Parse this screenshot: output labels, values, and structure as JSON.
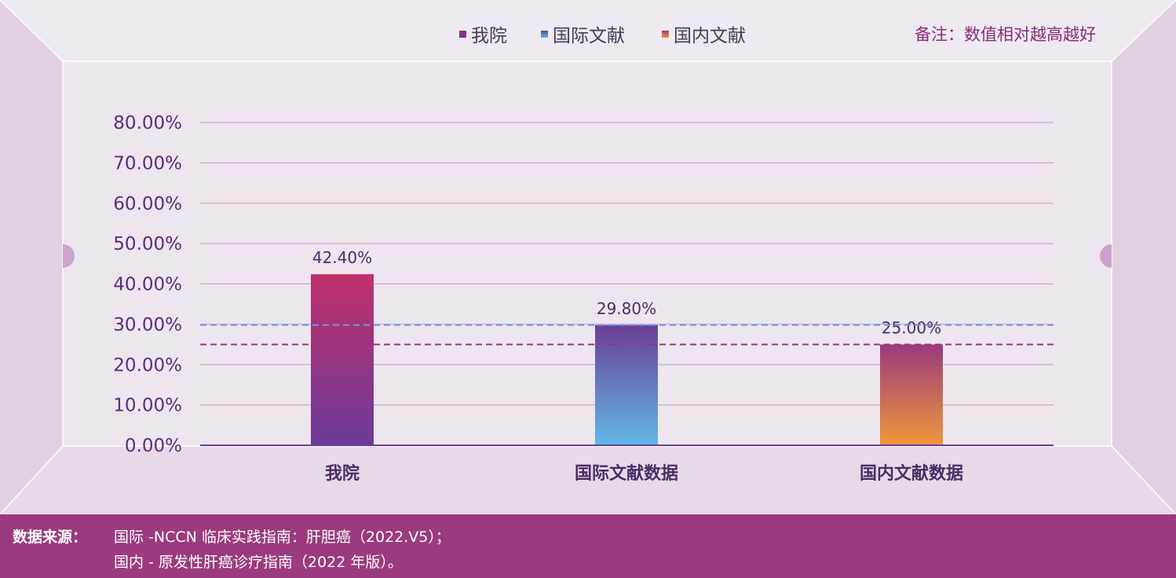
{
  "legend": [
    {
      "label": "我院",
      "color": "#9b2e78"
    },
    {
      "label": "国际文献",
      "color": "#5a7ec8"
    },
    {
      "label": "国内文献",
      "color": "#d9643a"
    }
  ],
  "note": "备注：数值相对越高越好",
  "footer": {
    "label": "数据来源：",
    "line1": "国际 -NCCN 临床实践指南：肝胆癌（2022.V5）；",
    "line2": "国内 - 原发性肝癌诊疗指南（2022 年版）。"
  },
  "chart_data": {
    "type": "bar",
    "categories": [
      "我院",
      "国际文献数据",
      "国内文献数据"
    ],
    "values": [
      42.4,
      29.8,
      25.0
    ],
    "data_labels": [
      "42.40%",
      "29.80%",
      "25.00%"
    ],
    "bar_colors": [
      [
        "#c0306a",
        "#6a3a9a"
      ],
      [
        "#6a3f96",
        "#62b8e6"
      ],
      [
        "#9b3a7e",
        "#f0973a"
      ]
    ],
    "ylim": [
      0,
      80
    ],
    "yticks": [
      "0.00%",
      "10.00%",
      "20.00%",
      "30.00%",
      "40.00%",
      "50.00%",
      "60.00%",
      "70.00%",
      "80.00%"
    ],
    "reference_lines": [
      {
        "value": 29.8,
        "color": "#6a9be0"
      },
      {
        "value": 25.0,
        "color": "#a0327e"
      }
    ],
    "grid": true
  }
}
